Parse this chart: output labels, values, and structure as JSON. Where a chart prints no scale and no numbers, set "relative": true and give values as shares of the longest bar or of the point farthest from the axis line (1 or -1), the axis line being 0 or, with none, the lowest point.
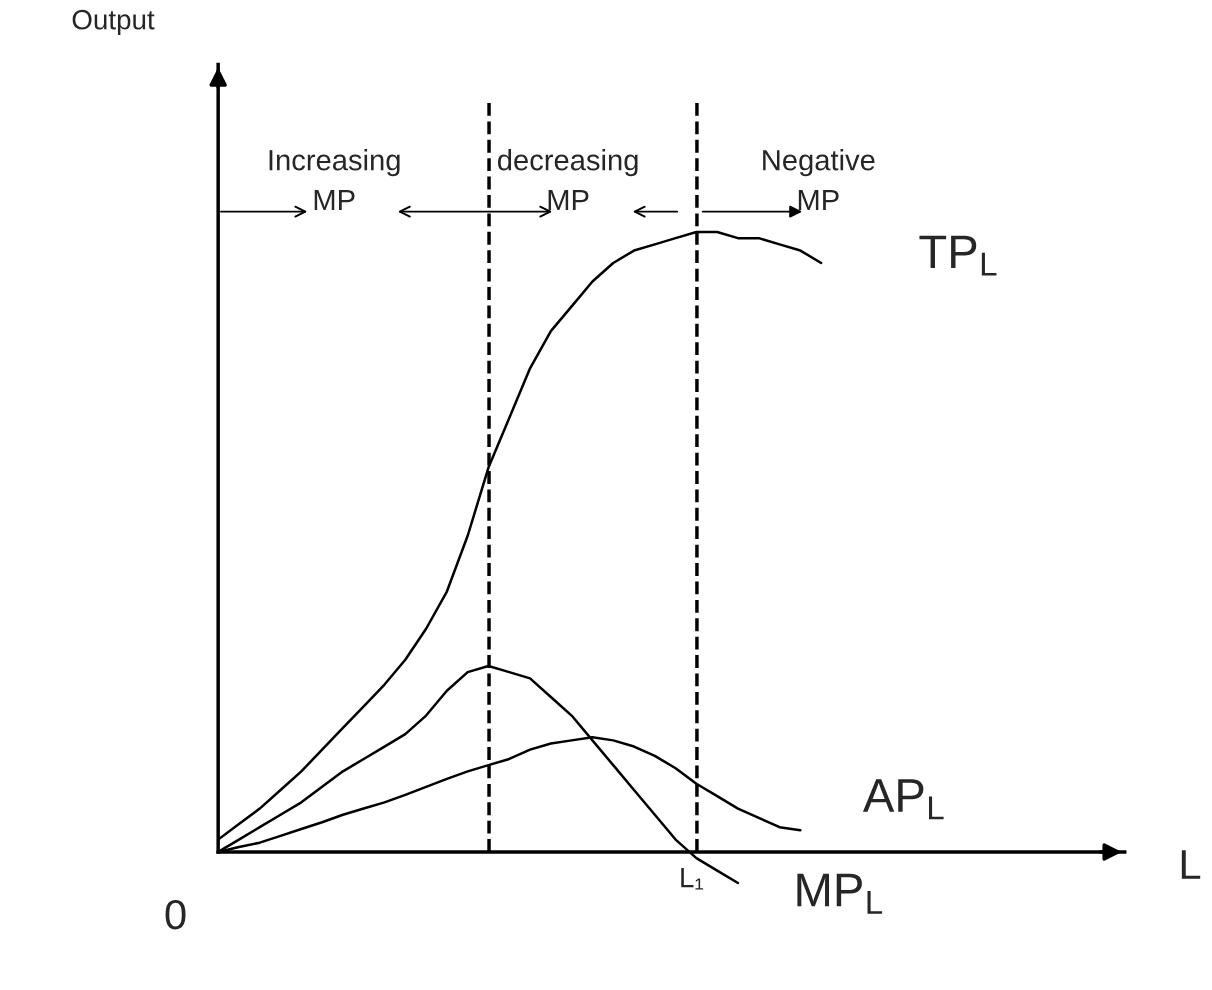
{
  "chart_data": {
    "type": "line",
    "relative": true,
    "categories": [
      null,
      null,
      null,
      null,
      null,
      null,
      null,
      null,
      null,
      null,
      null,
      null,
      null,
      null,
      null,
      null,
      null,
      null,
      null,
      null,
      null,
      null,
      null,
      null,
      null,
      null,
      null,
      null,
      null,
      null
    ],
    "series": [
      {
        "name": "TP$_{L}$",
        "color": "#000000",
        "values": [
          0.02,
          0.045,
          0.07,
          0.1,
          0.13,
          0.165,
          0.2,
          0.235,
          0.27,
          0.31,
          0.36,
          0.42,
          0.51,
          0.62,
          0.7,
          0.78,
          0.84,
          0.88,
          0.92,
          0.95,
          0.97,
          0.98,
          0.99,
          1.0,
          1.0,
          0.99,
          0.99,
          0.98,
          0.97,
          0.95
        ]
      },
      {
        "name": "AP$_{L}$",
        "color": "#000000",
        "values": [
          0.0,
          0.008,
          0.015,
          0.026,
          0.037,
          0.048,
          0.06,
          0.07,
          0.08,
          0.092,
          0.105,
          0.118,
          0.13,
          0.14,
          0.15,
          0.165,
          0.175,
          0.18,
          0.185,
          0.18,
          0.17,
          0.155,
          0.135,
          0.11,
          0.09,
          0.07,
          0.055,
          0.04,
          0.035,
          null
        ]
      },
      {
        "name": "MP$_{L}$",
        "color": "#000000",
        "values": [
          0.0,
          0.02,
          0.04,
          0.06,
          0.08,
          0.105,
          0.13,
          0.15,
          0.17,
          0.19,
          0.22,
          0.26,
          0.29,
          0.3,
          0.29,
          0.28,
          0.25,
          0.22,
          0.18,
          0.14,
          0.1,
          0.06,
          0.02,
          -0.01,
          -0.03,
          -0.05,
          null,
          null,
          null,
          null
        ]
      }
    ],
    "annotations": [
      "Increasing\nMP",
      "decreasing\nMP",
      "Negative\nMP",
      "0",
      "Output",
      "L",
      "L₁"
    ],
    "line_style": "solid",
    "marker": "none",
    "legend": false
  }
}
